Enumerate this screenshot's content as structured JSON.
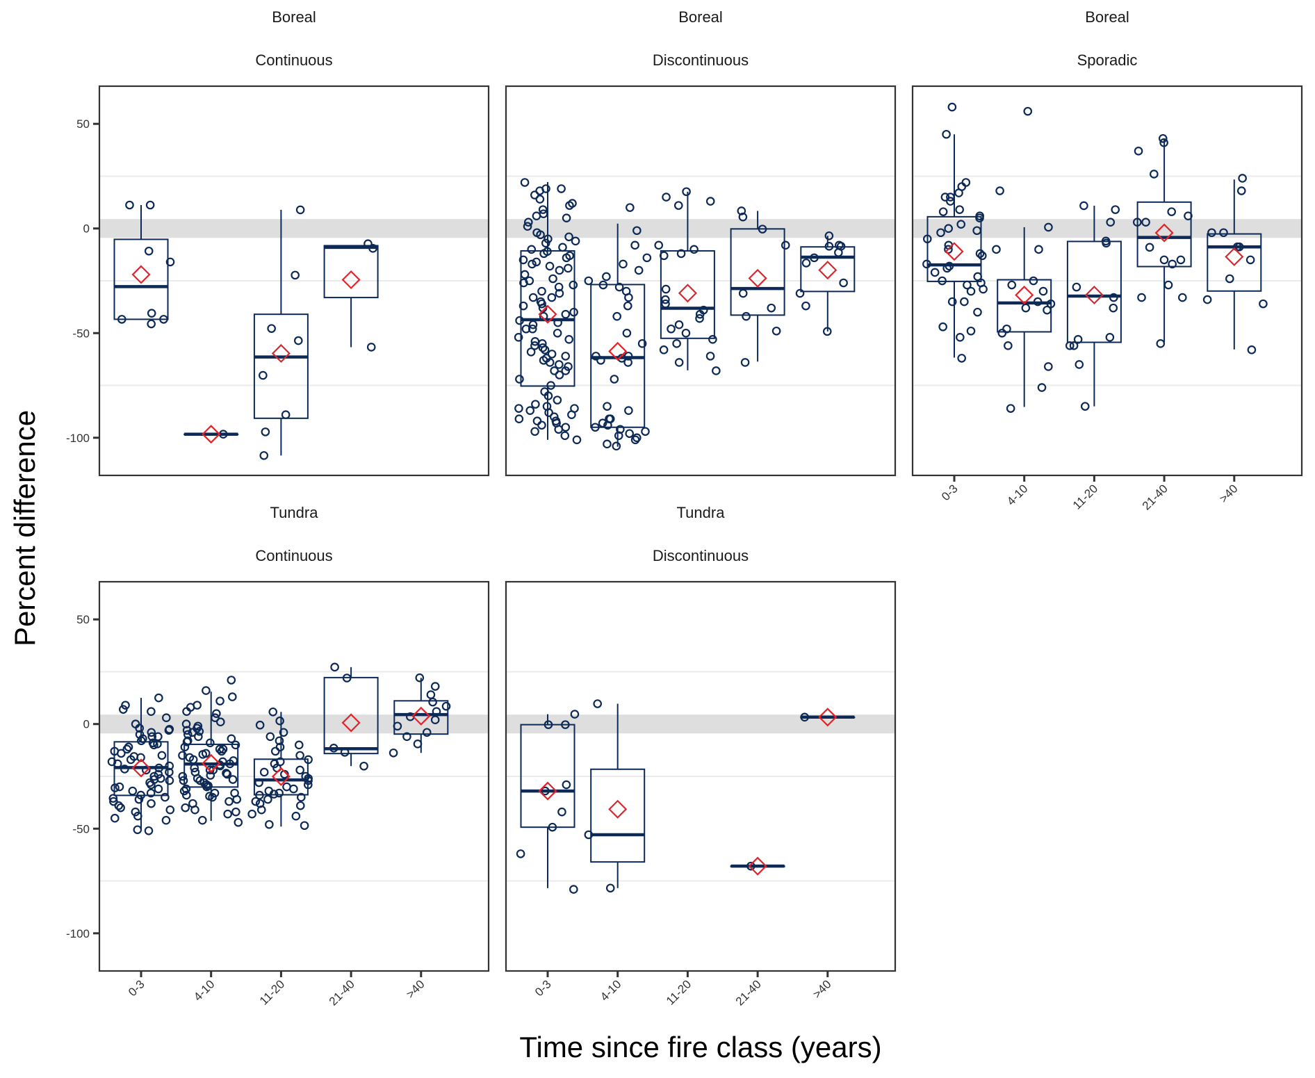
{
  "chart_data": {
    "type": "box",
    "title": "",
    "xlabel": "Time since fire class (years)",
    "ylabel": "Percent difference",
    "categories": [
      "0-3",
      "4-10",
      "11-20",
      "21-40",
      ">40"
    ],
    "yticks": [
      50,
      0,
      -50,
      -100
    ],
    "ylim": [
      -118,
      68
    ],
    "gridlines_minor": [
      25,
      -25,
      -75
    ],
    "reference_band": [
      -4.5,
      4.5
    ],
    "colors": {
      "box": "#0d2a57",
      "mean_marker": "#e0242b",
      "band": "#dedede",
      "grid": "#ebebeb",
      "frame": "#333333"
    },
    "legend": "none",
    "panels": [
      {
        "region": "Boreal",
        "permafrost": "Continuous",
        "show_x_labels": false,
        "groups": [
          {
            "category": "0-3",
            "q1": -43.4,
            "median": -27.8,
            "q3": -5.2,
            "whisker_low": -43.4,
            "whisker_high": 11.2,
            "mean": -22,
            "points": [
              11.2,
              11.2,
              -10.8,
              -16,
              -40.5,
              -45.6,
              -43.4,
              -43.4
            ]
          },
          {
            "category": "4-10",
            "q1": -98.3,
            "median": -98.3,
            "q3": -98.3,
            "whisker_low": -98.3,
            "whisker_high": -98.3,
            "mean": -98.3,
            "points": [
              -98.3
            ]
          },
          {
            "category": "11-20",
            "q1": -90.7,
            "median": -61.4,
            "q3": -41,
            "whisker_low": -108.5,
            "whisker_high": 8.9,
            "mean": -59.7,
            "points": [
              8.9,
              -22.3,
              -47.8,
              -53.6,
              -70.2,
              -89,
              -97.2,
              -108.5
            ]
          },
          {
            "category": "21-40",
            "q1": -33,
            "median": -9,
            "q3": -8.2,
            "whisker_low": -56.7,
            "whisker_high": -8,
            "mean": -24.5,
            "points": [
              -7.3,
              -9.5,
              -56.7
            ]
          },
          {
            "category": ">40",
            "q1": null,
            "median": null,
            "q3": null,
            "whisker_low": null,
            "whisker_high": null,
            "mean": null,
            "points": []
          }
        ]
      },
      {
        "region": "Boreal",
        "permafrost": "Discontinuous",
        "show_x_labels": false,
        "groups": [
          {
            "category": "0-3",
            "q1": -75.3,
            "median": -43.6,
            "q3": -10.7,
            "whisker_low": -101,
            "whisker_high": 22.2,
            "mean": -41,
            "points": [
              22,
              19,
              19,
              18,
              16,
              14,
              12,
              11,
              9,
              7,
              5,
              3,
              1,
              -2,
              -3,
              -5,
              -6,
              -7,
              -9,
              -10,
              -12,
              -13,
              -14,
              -16,
              -18,
              -19,
              -20,
              -22,
              -24,
              -26,
              -28,
              -30,
              -31,
              -33,
              -35,
              -36,
              -38,
              -40,
              -42,
              -44,
              -46,
              -48,
              -50,
              -52,
              -54,
              -56,
              -57,
              -59,
              -61,
              -62,
              -64,
              -66,
              -68,
              -70,
              -72,
              -75,
              -78,
              -80,
              -82,
              -84,
              -85,
              -86,
              -87,
              -88,
              -89,
              -90,
              -91,
              -92,
              -93,
              -94,
              -95,
              -96,
              -97,
              -99,
              -101,
              -11,
              -25,
              -33,
              -45,
              -53,
              -60,
              -65,
              -15,
              -27,
              -37,
              -48,
              -58,
              -68,
              6,
              -4,
              -17,
              -41,
              -55,
              -63,
              -86,
              -92
            ]
          },
          {
            "category": "4-10",
            "q1": -95,
            "median": -61.7,
            "q3": -26.8,
            "whisker_low": -104.3,
            "whisker_high": 2.3,
            "mean": -58.7,
            "points": [
              10,
              -1,
              -8,
              -14,
              -17,
              -20,
              -23,
              -25,
              -27,
              -28,
              -30,
              -33,
              -37,
              -42,
              -50,
              -55,
              -61,
              -61,
              -62,
              -63,
              -64,
              -72,
              -85,
              -87,
              -91,
              -91,
              -93,
              -94,
              -95,
              -96,
              -97,
              -98,
              -99,
              -100,
              -101,
              -103,
              -104
            ]
          },
          {
            "category": "11-20",
            "q1": -52.5,
            "median": -38.1,
            "q3": -10.7,
            "whisker_low": -67.8,
            "whisker_high": 17.6,
            "mean": -30.9,
            "points": [
              17.6,
              15,
              13,
              11,
              -8,
              -10,
              -12,
              -13,
              -29,
              -34,
              -36,
              -39,
              -41,
              -43,
              -46,
              -48,
              -50,
              -53,
              -55,
              -58,
              -61,
              -64,
              -68
            ]
          },
          {
            "category": "21-40",
            "q1": -41.4,
            "median": -28.7,
            "q3": -0.2,
            "whisker_low": -63.6,
            "whisker_high": 8.4,
            "mean": -23.8,
            "points": [
              8.4,
              5.5,
              -0.3,
              -8,
              -31,
              -38,
              -42,
              -49,
              -64
            ]
          },
          {
            "category": ">40",
            "q1": -30.1,
            "median": -13.7,
            "q3": -8.8,
            "whisker_low": -49.2,
            "whisker_high": -3.5,
            "mean": -19.9,
            "points": [
              -3.5,
              -8.5,
              -8.5,
              -8,
              -11.5,
              -14,
              -16.5,
              -26,
              -31,
              -37,
              -49.2
            ]
          }
        ]
      },
      {
        "region": "Boreal",
        "permafrost": "Sporadic",
        "show_x_labels": true,
        "groups": [
          {
            "category": "0-3",
            "q1": -25.3,
            "median": -17.4,
            "q3": 5.6,
            "whisker_low": -61.7,
            "whisker_high": 45,
            "mean": -11,
            "points": [
              58,
              45,
              22,
              20,
              17,
              15,
              15,
              13,
              9,
              8,
              6,
              5,
              2,
              0,
              -1,
              -2,
              -5,
              -8,
              -10,
              -12,
              -13,
              -17,
              -18,
              -19,
              -21,
              -23,
              -25,
              -26,
              -27,
              -29,
              -30,
              -35,
              -35,
              -40,
              -47,
              -49,
              -52,
              -62
            ]
          },
          {
            "category": "4-10",
            "q1": -49.4,
            "median": -35.6,
            "q3": -24.5,
            "whisker_low": -85.3,
            "whisker_high": 0.6,
            "mean": -31.8,
            "points": [
              56,
              18,
              0.6,
              -10,
              -10,
              -25,
              -27,
              -30,
              -35,
              -36,
              -38,
              -39,
              -48,
              -50,
              -56,
              -66,
              -76,
              -86
            ]
          },
          {
            "category": "11-20",
            "q1": -54.4,
            "median": -32.3,
            "q3": -6.2,
            "whisker_low": -85,
            "whisker_high": 10.9,
            "mean": -31.8,
            "points": [
              10.9,
              9,
              3,
              -6,
              -7,
              -28,
              -33,
              -38,
              -52,
              -53,
              -56,
              -56,
              -65,
              -85
            ]
          },
          {
            "category": "21-40",
            "q1": -18.2,
            "median": -4.3,
            "q3": 12.6,
            "whisker_low": -54.3,
            "whisker_high": 42.8,
            "mean": -2.1,
            "points": [
              43,
              41,
              37,
              26,
              8,
              6,
              3,
              3,
              -9,
              -15,
              -15,
              -17,
              -27,
              -33,
              -33,
              -55
            ]
          },
          {
            "category": ">40",
            "q1": -29.9,
            "median": -8.8,
            "q3": -2.6,
            "whisker_low": -57.8,
            "whisker_high": 23.4,
            "mean": -13.5,
            "points": [
              24,
              18,
              -2,
              -2,
              -8.8,
              -8.8,
              -15,
              -24,
              -34,
              -36,
              -58
            ]
          }
        ]
      },
      {
        "region": "Tundra",
        "permafrost": "Continuous",
        "show_x_labels": true,
        "groups": [
          {
            "category": "0-3",
            "q1": -34.1,
            "median": -20.8,
            "q3": -8.5,
            "whisker_low": -50.4,
            "whisker_high": 12.5,
            "mean": -21,
            "points": [
              12.5,
              9,
              7,
              6,
              3,
              0,
              -2,
              -3,
              -4,
              -5,
              -6,
              -7,
              -8,
              -9,
              -10,
              -11,
              -12,
              -13,
              -14,
              -15,
              -16,
              -17,
              -18,
              -19,
              -20,
              -21,
              -22,
              -23,
              -24,
              -25,
              -26,
              -27,
              -28,
              -29,
              -30,
              -31,
              -32,
              -33,
              -34,
              -35,
              -36,
              -37,
              -38,
              -39,
              -40,
              -41,
              -42,
              -44,
              -45,
              -46,
              -50.5,
              -51,
              -2.5,
              -6,
              -9.5,
              -15.5,
              -21.5,
              -26.5,
              -30.5,
              -35.5
            ]
          },
          {
            "category": "4-10",
            "q1": -30.1,
            "median": -19.1,
            "q3": -9.7,
            "whisker_low": -46.3,
            "whisker_high": 15.5,
            "mean": -18.8,
            "points": [
              21,
              16,
              13,
              11,
              9,
              8,
              6,
              5,
              3,
              1,
              0,
              -1,
              -2,
              -3,
              -4,
              -5,
              -6,
              -7,
              -8,
              -9,
              -10,
              -11,
              -12,
              -13,
              -14,
              -15,
              -16,
              -17,
              -18,
              -19,
              -20,
              -21,
              -22,
              -23,
              -24,
              -25,
              -26,
              -27,
              -28,
              -29,
              -30,
              -31,
              -32,
              -33,
              -34,
              -35,
              -36,
              -37,
              -38,
              -40,
              -41,
              -42,
              -43,
              -46,
              -47,
              -3.5,
              -8.5,
              -14.5,
              -19.5,
              -24.5,
              -29.5,
              -34.5,
              -12,
              -22,
              -27,
              -33,
              -17.5,
              -23.5,
              -26.5
            ]
          },
          {
            "category": "11-20",
            "q1": -33.8,
            "median": -26.7,
            "q3": -16.8,
            "whisker_low": -49,
            "whisker_high": 5.8,
            "mean": -25.1,
            "points": [
              5.8,
              1.5,
              -0.5,
              -4,
              -6,
              -8,
              -10,
              -11,
              -13,
              -15,
              -17,
              -18,
              -19,
              -21,
              -22,
              -24,
              -25,
              -26,
              -27,
              -28,
              -30,
              -31,
              -32,
              -33,
              -34,
              -35,
              -36,
              -37,
              -38,
              -39,
              -41,
              -43,
              -44,
              -48,
              -48.5,
              -23,
              -29,
              -33.5
            ]
          },
          {
            "category": "21-40",
            "q1": -14.1,
            "median": -11.8,
            "q3": 22.2,
            "whisker_low": -20.1,
            "whisker_high": 27.2,
            "mean": 0.6,
            "points": [
              27.2,
              22,
              -11.5,
              -13.5,
              -20.1
            ]
          },
          {
            "category": ">40",
            "q1": -4.8,
            "median": 4.5,
            "q3": 11.1,
            "whisker_low": -13.8,
            "whisker_high": 22.1,
            "mean": 3.8,
            "points": [
              22.1,
              18,
              14,
              10.5,
              8.5,
              6,
              3.5,
              2,
              -1,
              -4,
              -6,
              -9.5,
              -13.8
            ]
          }
        ]
      },
      {
        "region": "Tundra",
        "permafrost": "Discontinuous",
        "show_x_labels": true,
        "groups": [
          {
            "category": "0-3",
            "q1": -49.3,
            "median": -32,
            "q3": -0.3,
            "whisker_low": -78.4,
            "whisker_high": 4.7,
            "mean": -32,
            "points": [
              4.7,
              -0.3,
              -0.3,
              -29,
              -32,
              -42,
              -49.3,
              -62,
              -79
            ]
          },
          {
            "category": "4-10",
            "q1": -65.9,
            "median": -52.9,
            "q3": -21.6,
            "whisker_low": -78.4,
            "whisker_high": 9.7,
            "mean": -40.7,
            "points": [
              9.7,
              -52.9,
              -78.4
            ]
          },
          {
            "category": "11-20",
            "q1": null,
            "median": null,
            "q3": null,
            "whisker_low": null,
            "whisker_high": null,
            "mean": null,
            "points": []
          },
          {
            "category": "21-40",
            "q1": -67.9,
            "median": -67.9,
            "q3": -67.9,
            "whisker_low": -67.9,
            "whisker_high": -67.9,
            "mean": -67.9,
            "points": [
              -67.9
            ]
          },
          {
            "category": ">40",
            "q1": 3.3,
            "median": 3.3,
            "q3": 3.3,
            "whisker_low": 3.3,
            "whisker_high": 3.3,
            "mean": 3.3,
            "points": [
              3.3
            ]
          }
        ]
      }
    ]
  }
}
